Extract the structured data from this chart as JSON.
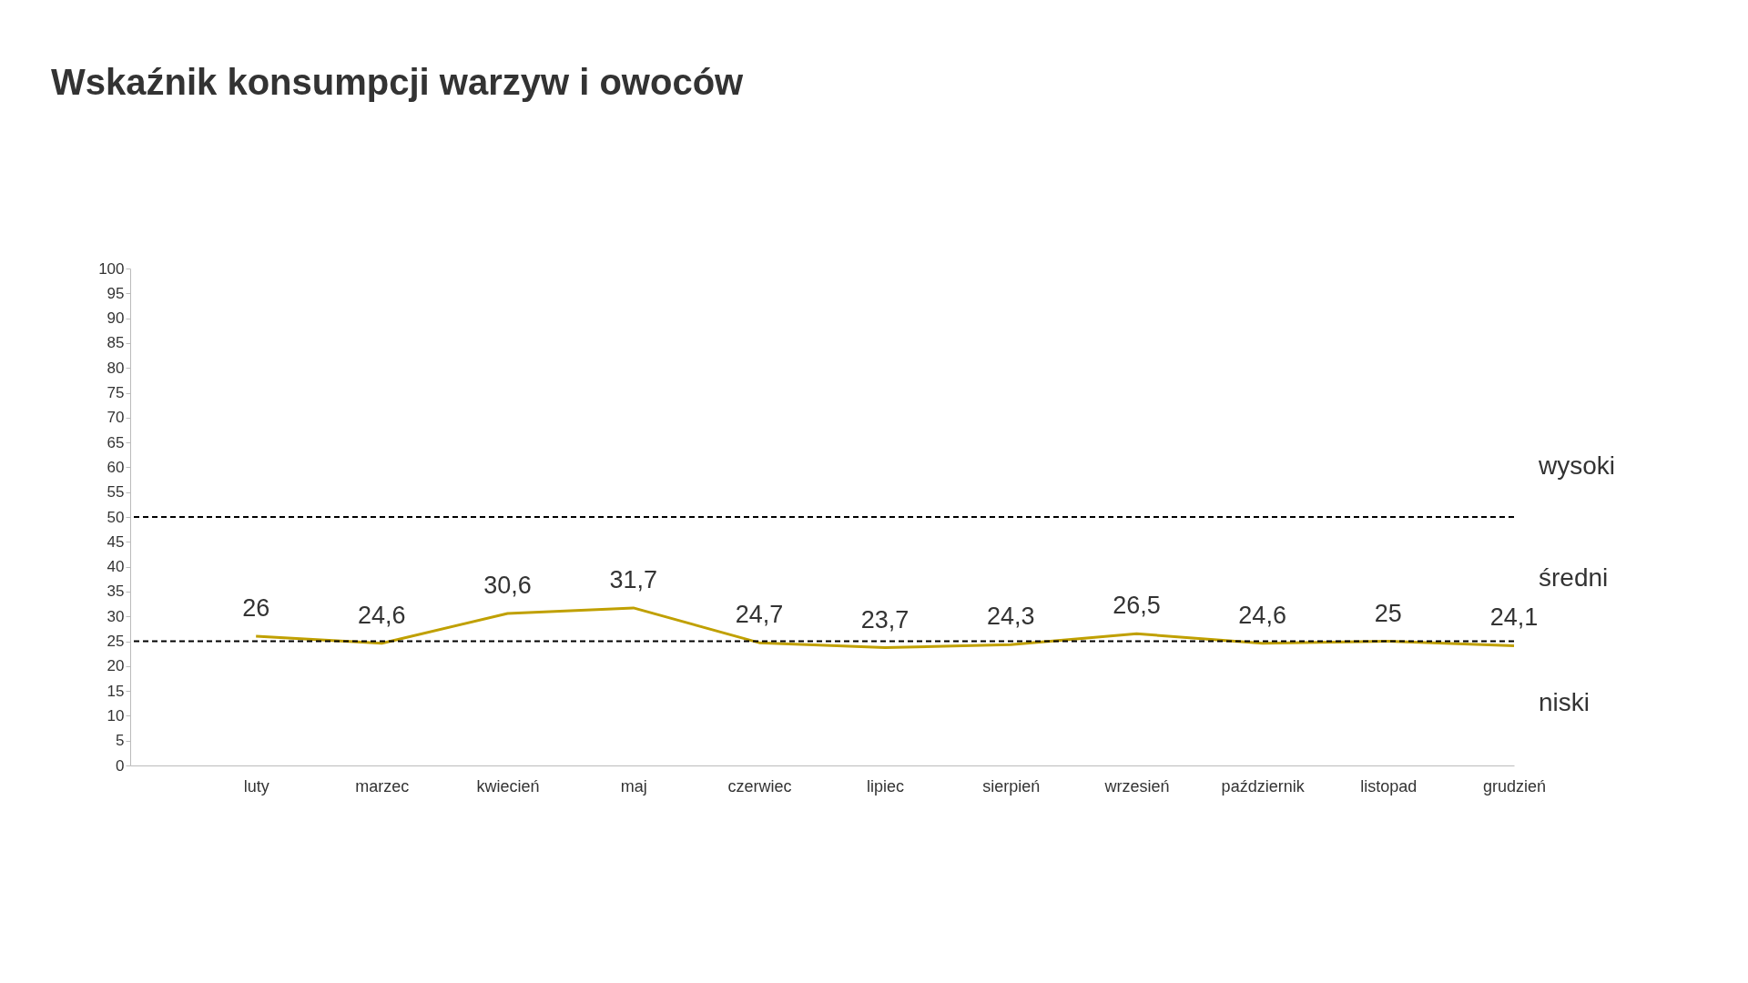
{
  "chart_data": {
    "type": "line",
    "title": "Wskaźnik konsumpcji warzyw i owoców",
    "categories": [
      "luty",
      "marzec",
      "kwiecień",
      "maj",
      "czerwiec",
      "lipiec",
      "sierpień",
      "wrzesień",
      "październik",
      "listopad",
      "grudzień"
    ],
    "series": [
      {
        "color": "#c0a000",
        "values": [
          26,
          24.6,
          30.6,
          31.7,
          24.7,
          23.7,
          24.3,
          26.5,
          24.6,
          25,
          24.1
        ],
        "value_labels": [
          "26",
          "24,6",
          "30,6",
          "31,7",
          "24,7",
          "23,7",
          "24,3",
          "26,5",
          "24,6",
          "25",
          "24,1"
        ]
      }
    ],
    "ylim": [
      0,
      100
    ],
    "yticks": [
      0,
      5,
      10,
      15,
      20,
      25,
      30,
      35,
      40,
      45,
      50,
      55,
      60,
      65,
      70,
      75,
      80,
      85,
      90,
      95,
      100
    ],
    "ref_lines": [
      {
        "axis": "y",
        "value": 50,
        "line_style": "dashed",
        "color": "#000000"
      },
      {
        "axis": "y",
        "value": 25,
        "line_style": "dashed",
        "color": "#000000"
      }
    ],
    "annotations": [
      "wysoki",
      "średni",
      "niski"
    ],
    "grid": false,
    "marker": "none",
    "line_style": "solid"
  }
}
